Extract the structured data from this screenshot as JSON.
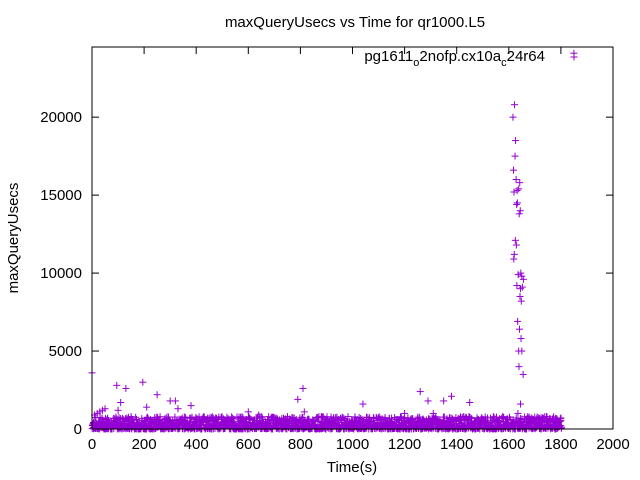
{
  "chart_data": {
    "type": "scatter",
    "title": "maxQueryUsecs vs Time for qr1000.L5",
    "xlabel": "Time(s)",
    "ylabel": "maxQueryUsecs",
    "xlim": [
      0,
      2000
    ],
    "ylim": [
      0,
      24500
    ],
    "x_ticks": [
      0,
      200,
      400,
      600,
      800,
      1000,
      1200,
      1400,
      1600,
      1800,
      2000
    ],
    "y_ticks": [
      0,
      5000,
      10000,
      15000,
      20000
    ],
    "grid": false,
    "legend_position": "top-right",
    "series": [
      {
        "name": "pg1611_o2nofp.cx10a_c24r64",
        "color": "#9400d3",
        "marker": "plus",
        "points": [
          [
            0,
            3600
          ],
          [
            10,
            900
          ],
          [
            20,
            1000
          ],
          [
            30,
            1100
          ],
          [
            40,
            1200
          ],
          [
            50,
            1300
          ],
          [
            60,
            700
          ],
          [
            95,
            2800
          ],
          [
            100,
            1200
          ],
          [
            110,
            1700
          ],
          [
            130,
            2600
          ],
          [
            150,
            800
          ],
          [
            195,
            3000
          ],
          [
            210,
            1400
          ],
          [
            250,
            2200
          ],
          [
            300,
            1800
          ],
          [
            320,
            1800
          ],
          [
            330,
            1300
          ],
          [
            380,
            1500
          ],
          [
            450,
            500
          ],
          [
            600,
            1100
          ],
          [
            640,
            900
          ],
          [
            790,
            1900
          ],
          [
            810,
            2600
          ],
          [
            815,
            1100
          ],
          [
            880,
            800
          ],
          [
            1040,
            1600
          ],
          [
            1150,
            700
          ],
          [
            1200,
            1000
          ],
          [
            1260,
            2400
          ],
          [
            1290,
            1800
          ],
          [
            1310,
            1000
          ],
          [
            1350,
            1800
          ],
          [
            1380,
            2100
          ],
          [
            1450,
            1700
          ],
          [
            1500,
            600
          ],
          [
            1530,
            700
          ],
          [
            1616,
            20000
          ],
          [
            1622,
            20800
          ],
          [
            1618,
            16600
          ],
          [
            1624,
            17500
          ],
          [
            1626,
            18500
          ],
          [
            1620,
            15200
          ],
          [
            1632,
            15300
          ],
          [
            1638,
            15400
          ],
          [
            1642,
            15800
          ],
          [
            1628,
            16000
          ],
          [
            1630,
            14400
          ],
          [
            1640,
            13800
          ],
          [
            1644,
            14000
          ],
          [
            1633,
            14500
          ],
          [
            1625,
            12100
          ],
          [
            1629,
            11800
          ],
          [
            1621,
            11200
          ],
          [
            1619,
            10900
          ],
          [
            1636,
            9900
          ],
          [
            1646,
            10000
          ],
          [
            1650,
            9800
          ],
          [
            1656,
            9600
          ],
          [
            1631,
            9200
          ],
          [
            1645,
            9000
          ],
          [
            1652,
            9100
          ],
          [
            1648,
            8200
          ],
          [
            1643,
            8500
          ],
          [
            1634,
            6900
          ],
          [
            1641,
            6400
          ],
          [
            1647,
            5800
          ],
          [
            1638,
            5000
          ],
          [
            1650,
            5000
          ],
          [
            1639,
            4000
          ],
          [
            1655,
            3500
          ],
          [
            1645,
            1600
          ],
          [
            1635,
            1000
          ],
          [
            1850,
            24100
          ]
        ],
        "baseline_band": {
          "x_range": [
            0,
            1800
          ],
          "y_range": [
            0,
            800
          ]
        }
      }
    ]
  }
}
